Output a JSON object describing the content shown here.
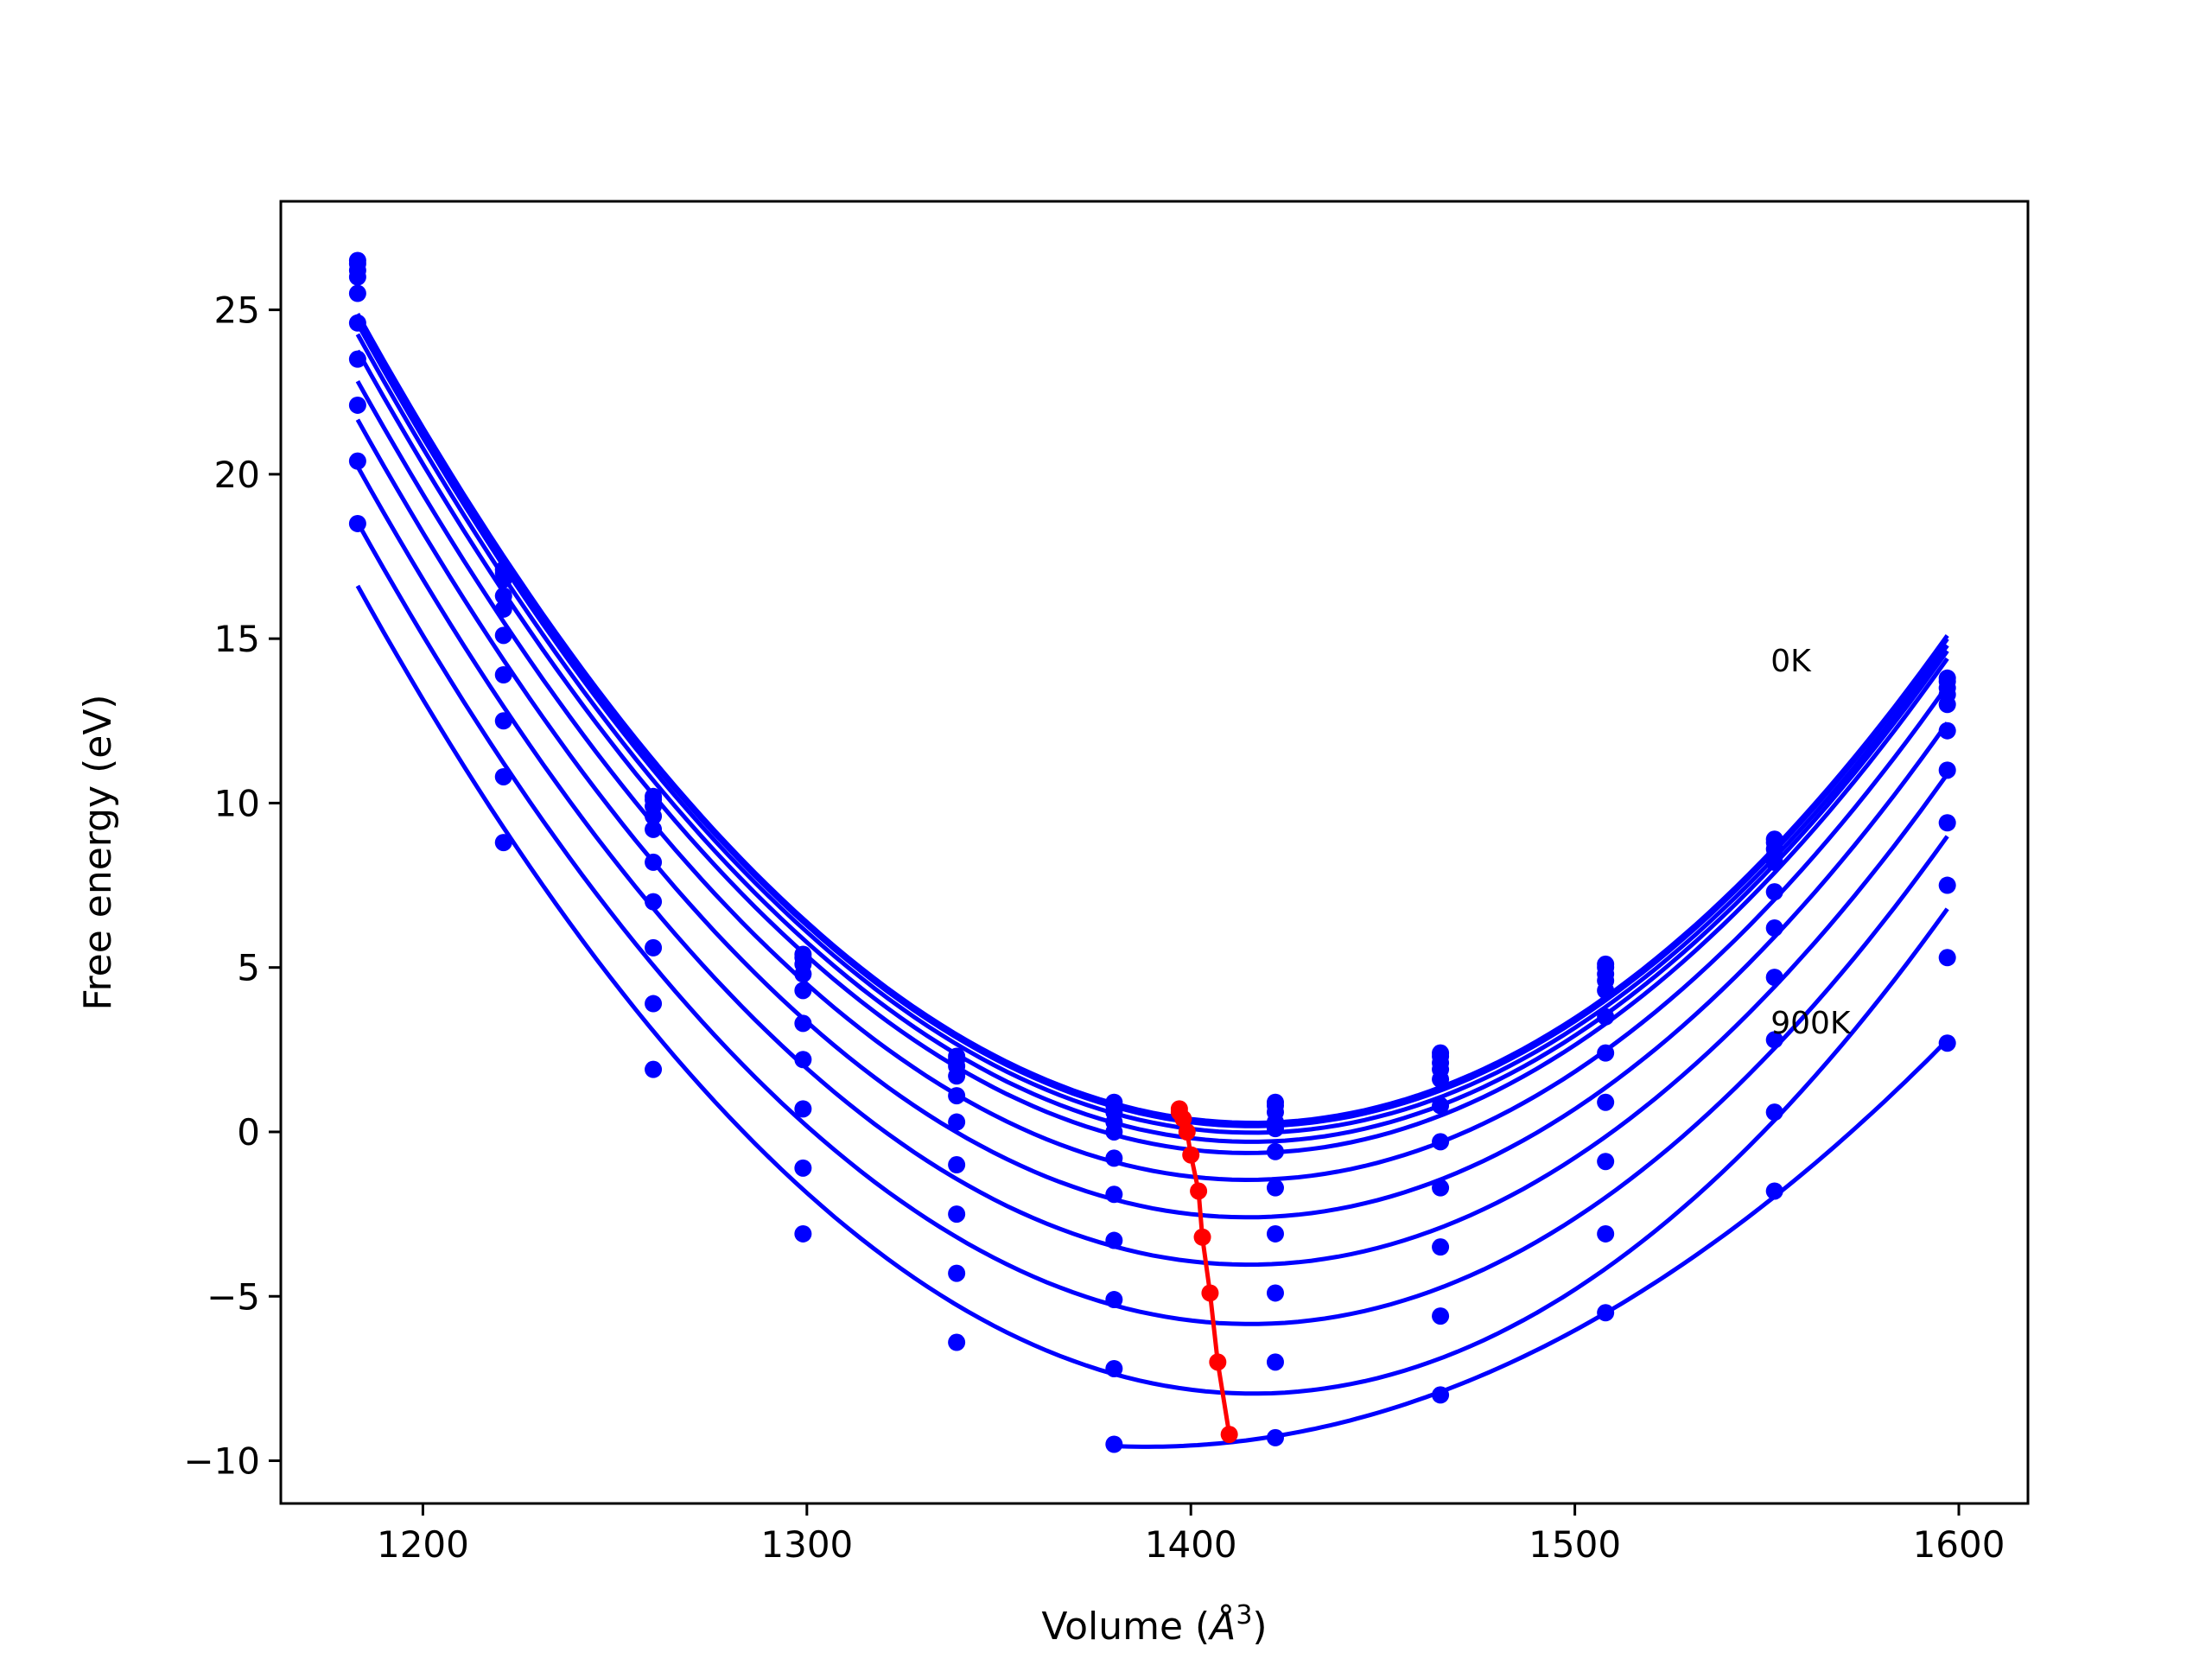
{
  "chart_data": {
    "type": "line",
    "title": "",
    "xlabel": "Volume (Å³)",
    "xlabel_parts": {
      "text": "Volume (",
      "symbol": "Å",
      "exponent": "3",
      "close": ")"
    },
    "ylabel": "Free energy (eV)",
    "xlim": [
      1163,
      1618
    ],
    "ylim": [
      -11.3,
      28.3
    ],
    "xticks": [
      1200,
      1300,
      1400,
      1500,
      1600
    ],
    "xtick_labels": [
      "1200",
      "1300",
      "1400",
      "1500",
      "1600"
    ],
    "yticks": [
      -10,
      -5,
      0,
      5,
      10,
      15,
      20,
      25
    ],
    "ytick_labels": [
      "−10",
      "−5",
      "0",
      "5",
      "10",
      "15",
      "20",
      "25"
    ],
    "grid": false,
    "colors": {
      "fit": "#0000ff",
      "points": "#0000ff",
      "minima": "#ff0000"
    },
    "x": [
      1183,
      1221,
      1260,
      1299,
      1339,
      1380,
      1422,
      1465,
      1508,
      1552,
      1597
    ],
    "series": [
      {
        "values": [
          26.5,
          17.1,
          10.2,
          5.4,
          2.3,
          0.9,
          0.9,
          2.4,
          5.1,
          8.9,
          13.8
        ]
      },
      {
        "values": [
          26.4,
          17.0,
          10.1,
          5.3,
          2.2,
          0.8,
          0.8,
          2.3,
          5.0,
          8.8,
          13.7
        ]
      },
      {
        "values": [
          26.2,
          16.8,
          9.9,
          5.1,
          2.0,
          0.6,
          0.6,
          2.1,
          4.8,
          8.6,
          13.5
        ]
      },
      {
        "values": [
          26.0,
          16.3,
          9.6,
          4.8,
          1.7,
          0.3,
          0.3,
          1.9,
          4.6,
          8.4,
          13.3
        ]
      },
      {
        "values": [
          25.5,
          15.9,
          9.2,
          4.3,
          1.1,
          0.0,
          0.1,
          1.6,
          4.3,
          8.2,
          13.0
        ]
      },
      {
        "values": [
          24.6,
          15.1,
          8.2,
          3.3,
          0.3,
          -0.8,
          -0.6,
          0.8,
          3.5,
          7.3,
          12.2
        ]
      },
      {
        "values": [
          23.5,
          13.9,
          7.0,
          2.2,
          -1.0,
          -1.9,
          -1.7,
          -0.3,
          2.4,
          6.2,
          11.0
        ]
      },
      {
        "values": [
          22.1,
          12.5,
          5.6,
          0.7,
          -2.5,
          -3.3,
          -3.1,
          -1.7,
          0.9,
          4.7,
          9.4
        ]
      },
      {
        "values": [
          20.4,
          10.8,
          3.9,
          -1.1,
          -4.3,
          -5.1,
          -4.9,
          -3.5,
          -0.9,
          2.8,
          7.5
        ]
      },
      {
        "values": [
          18.5,
          8.8,
          1.9,
          -3.1,
          -6.4,
          -7.2,
          -7.0,
          -5.6,
          -3.1,
          0.6,
          5.3
        ]
      },
      {
        "values": [
          null,
          null,
          null,
          null,
          null,
          -9.5,
          -9.3,
          -8.0,
          -5.5,
          -1.8,
          2.7
        ]
      }
    ],
    "fit_minima": [
      {
        "V": 1397,
        "E": 0.7
      },
      {
        "V": 1397,
        "E": 0.6
      },
      {
        "V": 1398,
        "E": 0.4
      },
      {
        "V": 1399,
        "E": 0.0
      },
      {
        "V": 1400,
        "E": -0.7
      },
      {
        "V": 1402,
        "E": -1.8
      },
      {
        "V": 1403,
        "E": -3.2
      },
      {
        "V": 1405,
        "E": -4.9
      },
      {
        "V": 1407,
        "E": -7.0
      },
      {
        "V": 1410,
        "E": -9.2
      }
    ],
    "annotations": [
      {
        "text": "0K",
        "x": 1551,
        "y": 14.0
      },
      {
        "text": "900K",
        "x": 1551,
        "y": 3.0
      }
    ]
  }
}
